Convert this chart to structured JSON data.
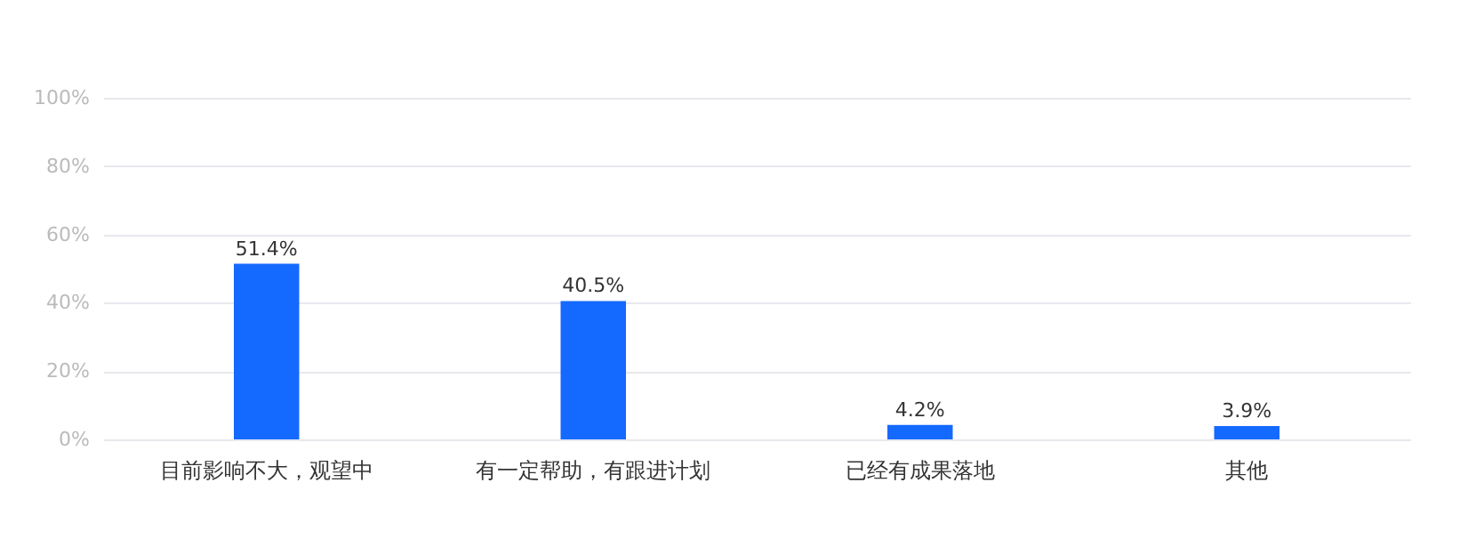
{
  "chart_data": {
    "type": "bar",
    "categories": [
      "目前影响不大，观望中",
      "有一定帮助，有跟进计划",
      "已经有成果落地",
      "其他"
    ],
    "values": [
      51.4,
      40.5,
      4.2,
      3.9
    ],
    "value_labels": [
      "51.4%",
      "40.5%",
      "4.2%",
      "3.9%"
    ],
    "color": "#1469ff",
    "ylim": [
      0,
      100
    ],
    "yticks": [
      {
        "value": 0,
        "label": "0%"
      },
      {
        "value": 20,
        "label": "20%"
      },
      {
        "value": 40,
        "label": "40%"
      },
      {
        "value": 60,
        "label": "60%"
      },
      {
        "value": 80,
        "label": "80%"
      },
      {
        "value": 100,
        "label": "100%"
      }
    ],
    "grid": "y"
  }
}
